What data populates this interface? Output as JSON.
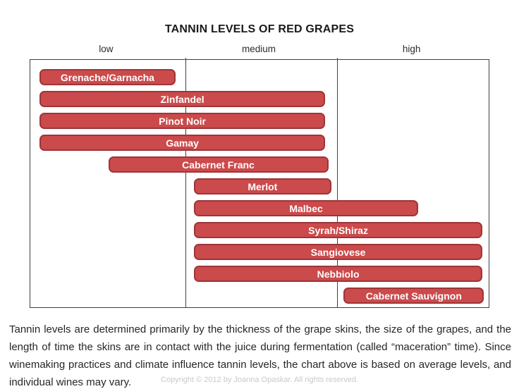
{
  "title": "TANNIN LEVELS OF RED GRAPES",
  "chart_data": {
    "type": "bar",
    "orientation": "horizontal",
    "title": "TANNIN LEVELS OF RED GRAPES",
    "x_axis": {
      "categories": [
        "low",
        "medium",
        "high"
      ],
      "position": "top",
      "range": [
        0,
        3
      ],
      "grid": "vertical column dividers"
    },
    "bars": [
      {
        "label": "Grenache/Garnacha",
        "start": 0.06,
        "end": 0.95
      },
      {
        "label": "Zinfandel",
        "start": 0.06,
        "end": 1.93
      },
      {
        "label": "Pinot Noir",
        "start": 0.06,
        "end": 1.93
      },
      {
        "label": "Gamay",
        "start": 0.06,
        "end": 1.93
      },
      {
        "label": "Cabernet Franc",
        "start": 0.51,
        "end": 1.95
      },
      {
        "label": "Merlot",
        "start": 1.07,
        "end": 1.97
      },
      {
        "label": "Malbec",
        "start": 1.07,
        "end": 2.54
      },
      {
        "label": "Syrah/Shiraz",
        "start": 1.07,
        "end": 2.96
      },
      {
        "label": "Sangiovese",
        "start": 1.07,
        "end": 2.96
      },
      {
        "label": "Nebbiolo",
        "start": 1.07,
        "end": 2.96
      },
      {
        "label": "Cabernet Sauvignon",
        "start": 2.05,
        "end": 2.97
      }
    ],
    "colors": {
      "bar_fill": "#cb4a4b",
      "bar_border": "#9e3537",
      "bar_text": "#ffffff",
      "chart_border": "#404040"
    }
  },
  "description": "Tannin levels are determined  primarily by the thickness of the grape skins, the size of the grapes, and the length of time the skins are in contact with the juice during fermentation  (called “maceration” time).  Since winemaking practices and climate influence tannin levels, the chart above is based on average levels, and individual wines may vary.",
  "copyright": "Copyright © 2012 by Joanna Opaskar. All rights reserved."
}
